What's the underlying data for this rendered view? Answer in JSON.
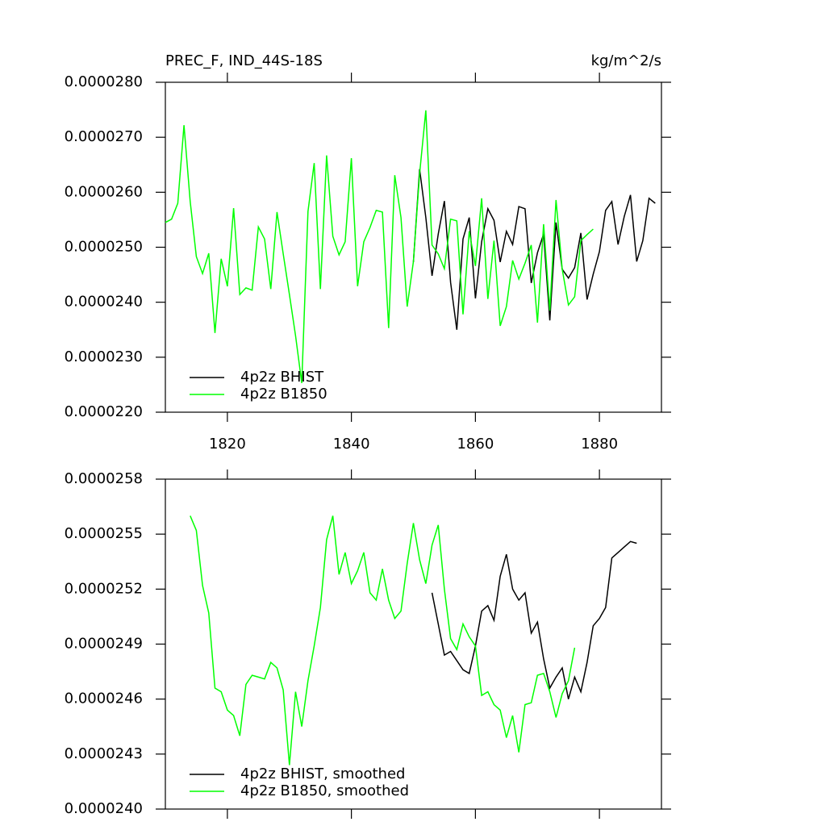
{
  "chart_data": [
    {
      "type": "line",
      "title": "PREC_F, IND_44S-18S",
      "units": "kg/m^2/s",
      "xlim": [
        1810,
        1890
      ],
      "xticks": [
        1820,
        1840,
        1860,
        1880
      ],
      "ylim": [
        2.2e-05,
        2.8e-05
      ],
      "yticks": [
        {
          "value": 2.2e-05,
          "label": "0.0000220"
        },
        {
          "value": 2.3e-05,
          "label": "0.0000230"
        },
        {
          "value": 2.4e-05,
          "label": "0.0000240"
        },
        {
          "value": 2.5e-05,
          "label": "0.0000250"
        },
        {
          "value": 2.6e-05,
          "label": "0.0000260"
        },
        {
          "value": 2.7e-05,
          "label": "0.0000270"
        },
        {
          "value": 2.8e-05,
          "label": "0.0000280"
        }
      ],
      "series": [
        {
          "name": "4p2z BHIST",
          "color": "#000000",
          "x": [
            1850,
            1851,
            1852,
            1853,
            1854,
            1855,
            1856,
            1857,
            1858,
            1859,
            1860,
            1861,
            1862,
            1863,
            1864,
            1865,
            1866,
            1867,
            1868,
            1869,
            1870,
            1871,
            1872,
            1873,
            1874,
            1875,
            1876,
            1877,
            1878,
            1879,
            1880,
            1881,
            1882,
            1883,
            1884,
            1885,
            1886,
            1887,
            1888,
            1889
          ],
          "values": [
            2.473e-05,
            2.642e-05,
            2.554e-05,
            2.448e-05,
            2.524e-05,
            2.584e-05,
            2.436e-05,
            2.35e-05,
            2.515e-05,
            2.554e-05,
            2.407e-05,
            2.51e-05,
            2.57e-05,
            2.549e-05,
            2.473e-05,
            2.529e-05,
            2.505e-05,
            2.574e-05,
            2.57e-05,
            2.435e-05,
            2.49e-05,
            2.524e-05,
            2.367e-05,
            2.545e-05,
            2.46e-05,
            2.444e-05,
            2.463e-05,
            2.526e-05,
            2.405e-05,
            2.451e-05,
            2.492e-05,
            2.567e-05,
            2.583e-05,
            2.505e-05,
            2.556e-05,
            2.595e-05,
            2.474e-05,
            2.512e-05,
            2.589e-05,
            2.58e-05
          ]
        },
        {
          "name": "4p2z B1850",
          "color": "#00ff00",
          "x": [
            1810,
            1811,
            1812,
            1813,
            1814,
            1815,
            1816,
            1817,
            1818,
            1819,
            1820,
            1821,
            1822,
            1823,
            1824,
            1825,
            1826,
            1827,
            1828,
            1829,
            1830,
            1831,
            1832,
            1833,
            1834,
            1835,
            1836,
            1837,
            1838,
            1839,
            1840,
            1841,
            1842,
            1843,
            1844,
            1845,
            1846,
            1847,
            1848,
            1849,
            1850,
            1851,
            1852,
            1853,
            1854,
            1855,
            1856,
            1857,
            1858,
            1859,
            1860,
            1861,
            1862,
            1863,
            1864,
            1865,
            1866,
            1867,
            1868,
            1869,
            1870,
            1871,
            1872,
            1873,
            1874,
            1875,
            1876,
            1877,
            1878,
            1879
          ],
          "values": [
            2.545e-05,
            2.551e-05,
            2.58e-05,
            2.722e-05,
            2.583e-05,
            2.483e-05,
            2.452e-05,
            2.489e-05,
            2.344e-05,
            2.479e-05,
            2.429e-05,
            2.571e-05,
            2.414e-05,
            2.426e-05,
            2.422e-05,
            2.537e-05,
            2.515e-05,
            2.424e-05,
            2.564e-05,
            2.488e-05,
            2.414e-05,
            2.339e-05,
            2.253e-05,
            2.565e-05,
            2.653e-05,
            2.424e-05,
            2.667e-05,
            2.52e-05,
            2.486e-05,
            2.51e-05,
            2.662e-05,
            2.429e-05,
            2.51e-05,
            2.536e-05,
            2.567e-05,
            2.564e-05,
            2.353e-05,
            2.631e-05,
            2.554e-05,
            2.392e-05,
            2.474e-05,
            2.634e-05,
            2.749e-05,
            2.504e-05,
            2.488e-05,
            2.461e-05,
            2.551e-05,
            2.548e-05,
            2.378e-05,
            2.529e-05,
            2.466e-05,
            2.589e-05,
            2.406e-05,
            2.512e-05,
            2.357e-05,
            2.392e-05,
            2.476e-05,
            2.442e-05,
            2.471e-05,
            2.504e-05,
            2.363e-05,
            2.542e-05,
            2.385e-05,
            2.586e-05,
            2.46e-05,
            2.395e-05,
            2.41e-05,
            2.512e-05,
            2.523e-05,
            2.533e-05
          ]
        }
      ]
    },
    {
      "type": "line",
      "xlim": [
        1810,
        1890
      ],
      "xticks": [
        1820,
        1840,
        1860,
        1880
      ],
      "x_tick_labels": false,
      "ylim": [
        2.4e-05,
        2.58e-05
      ],
      "yticks": [
        {
          "value": 2.4e-05,
          "label": "0.0000240"
        },
        {
          "value": 2.43e-05,
          "label": "0.0000243"
        },
        {
          "value": 2.46e-05,
          "label": "0.0000246"
        },
        {
          "value": 2.49e-05,
          "label": "0.0000249"
        },
        {
          "value": 2.52e-05,
          "label": "0.0000252"
        },
        {
          "value": 2.55e-05,
          "label": "0.0000255"
        },
        {
          "value": 2.58e-05,
          "label": "0.0000258"
        }
      ],
      "series": [
        {
          "name": "4p2z BHIST, smoothed",
          "color": "#000000",
          "x": [
            1853,
            1854,
            1855,
            1856,
            1857,
            1858,
            1859,
            1860,
            1861,
            1862,
            1863,
            1864,
            1865,
            1866,
            1867,
            1868,
            1869,
            1870,
            1871,
            1872,
            1873,
            1874,
            1875,
            1876,
            1877,
            1878,
            1879,
            1880,
            1881,
            1882,
            1883,
            1884,
            1885,
            1886
          ],
          "values": [
            2.518e-05,
            2.501e-05,
            2.484e-05,
            2.486e-05,
            2.481e-05,
            2.476e-05,
            2.474e-05,
            2.489e-05,
            2.508e-05,
            2.511e-05,
            2.503e-05,
            2.527e-05,
            2.539e-05,
            2.52e-05,
            2.514e-05,
            2.518e-05,
            2.496e-05,
            2.502e-05,
            2.482e-05,
            2.466e-05,
            2.472e-05,
            2.477e-05,
            2.46e-05,
            2.472e-05,
            2.464e-05,
            2.48e-05,
            2.5e-05,
            2.504e-05,
            2.51e-05,
            2.537e-05,
            2.54e-05,
            2.543e-05,
            2.546e-05,
            2.545e-05
          ]
        },
        {
          "name": "4p2z B1850, smoothed",
          "color": "#00ff00",
          "x": [
            1814,
            1815,
            1816,
            1817,
            1818,
            1819,
            1820,
            1821,
            1822,
            1823,
            1824,
            1825,
            1826,
            1827,
            1828,
            1829,
            1830,
            1831,
            1832,
            1833,
            1834,
            1835,
            1836,
            1837,
            1838,
            1839,
            1840,
            1841,
            1842,
            1843,
            1844,
            1845,
            1846,
            1847,
            1848,
            1849,
            1850,
            1851,
            1852,
            1853,
            1854,
            1855,
            1856,
            1857,
            1858,
            1859,
            1860,
            1861,
            1862,
            1863,
            1864,
            1865,
            1866,
            1867,
            1868,
            1869,
            1870,
            1871,
            1872,
            1873,
            1874,
            1875,
            1876
          ],
          "values": [
            2.56e-05,
            2.552e-05,
            2.522e-05,
            2.507e-05,
            2.466e-05,
            2.464e-05,
            2.454e-05,
            2.451e-05,
            2.44e-05,
            2.468e-05,
            2.473e-05,
            2.472e-05,
            2.471e-05,
            2.48e-05,
            2.477e-05,
            2.465e-05,
            2.424e-05,
            2.464e-05,
            2.445e-05,
            2.47e-05,
            2.489e-05,
            2.51e-05,
            2.547e-05,
            2.56e-05,
            2.528e-05,
            2.54e-05,
            2.523e-05,
            2.53e-05,
            2.54e-05,
            2.518e-05,
            2.514e-05,
            2.531e-05,
            2.514e-05,
            2.504e-05,
            2.508e-05,
            2.534e-05,
            2.556e-05,
            2.536e-05,
            2.523e-05,
            2.544e-05,
            2.555e-05,
            2.52e-05,
            2.493e-05,
            2.487e-05,
            2.501e-05,
            2.494e-05,
            2.489e-05,
            2.462e-05,
            2.464e-05,
            2.457e-05,
            2.454e-05,
            2.439e-05,
            2.451e-05,
            2.431e-05,
            2.457e-05,
            2.458e-05,
            2.473e-05,
            2.474e-05,
            2.464e-05,
            2.45e-05,
            2.463e-05,
            2.47e-05,
            2.488e-05
          ]
        }
      ]
    }
  ]
}
